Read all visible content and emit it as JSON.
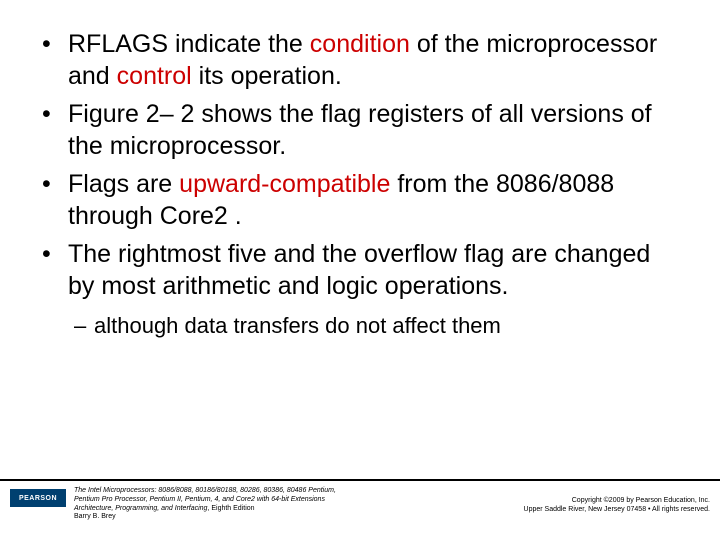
{
  "bullets": [
    {
      "segments": [
        {
          "text": "RFLAGS indicate the ",
          "bold": false,
          "red": false
        },
        {
          "text": "condition",
          "bold": false,
          "red": true
        },
        {
          "text": " of the microprocessor and ",
          "bold": false,
          "red": false
        },
        {
          "text": "control",
          "bold": false,
          "red": true
        },
        {
          "text": " its operation.",
          "bold": false,
          "red": false
        }
      ]
    },
    {
      "segments": [
        {
          "text": "Figure 2– 2 shows the flag registers of all versions of the microprocessor.",
          "bold": false,
          "red": false
        }
      ]
    },
    {
      "segments": [
        {
          "text": "Flags are ",
          "bold": false,
          "red": false
        },
        {
          "text": "upward-compatible",
          "bold": false,
          "red": true
        },
        {
          "text": " from the 8086/8088 through Core2 .",
          "bold": false,
          "red": false
        }
      ]
    },
    {
      "segments": [
        {
          "text": "The rightmost five and the overflow flag are changed by most arithmetic and logic operations.",
          "bold": false,
          "red": false
        }
      ]
    }
  ],
  "subitem": "although data transfers do not affect them",
  "footer": {
    "logo": "PEARSON",
    "book_line1": "The Intel Microprocessors: 8086/8088, 80186/80188, 80286, 80386, 80486 Pentium,",
    "book_line2": "Pentium Pro Processor, Pentium II, Pentium, 4, and Core2 with 64-bit Extensions",
    "book_line3": "Architecture, Programming, and Interfacing",
    "book_line3_suffix": ", Eighth Edition",
    "author": "Barry B. Brey",
    "copyright_line1": "Copyright ©2009 by Pearson Education, Inc.",
    "copyright_line2": "Upper Saddle River, New Jersey 07458 • All rights reserved."
  },
  "colors": {
    "red": "#cc0000",
    "logo_bg": "#004070"
  }
}
